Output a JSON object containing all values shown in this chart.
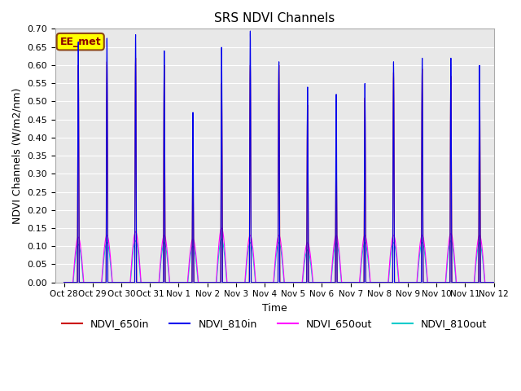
{
  "title": "SRS NDVI Channels",
  "xlabel": "Time",
  "ylabel": "NDVI Channels (W/m2/nm)",
  "ylim": [
    0.0,
    0.7
  ],
  "background_color": "#e8e8e8",
  "grid_color": "white",
  "annotation_text": "EE_met",
  "annotation_facecolor": "#ffff00",
  "annotation_edgecolor": "#8B4513",
  "annotation_textcolor": "#8B0000",
  "legend_entries": [
    {
      "label": "NDVI_650in",
      "color": "#cc0000"
    },
    {
      "label": "NDVI_810in",
      "color": "#0000ee"
    },
    {
      "label": "NDVI_650out",
      "color": "#ff00ff"
    },
    {
      "label": "NDVI_810out",
      "color": "#00cccc"
    }
  ],
  "tick_labels": [
    "Oct 28",
    "Oct 29",
    "Oct 30",
    "Oct 31",
    "Nov 1",
    "Nov 2",
    "Nov 3",
    "Nov 4",
    "Nov 5",
    "Nov 6",
    "Nov 7",
    "Nov 8",
    "Nov 9",
    "Nov 10",
    "Nov 11",
    "Nov 12"
  ],
  "num_days": 15,
  "day_peaks_810in": [
    0.665,
    0.675,
    0.685,
    0.64,
    0.47,
    0.65,
    0.695,
    0.61,
    0.54,
    0.52,
    0.55,
    0.61,
    0.62,
    0.62,
    0.6
  ],
  "day_peaks_650in": [
    0.6,
    0.61,
    0.62,
    0.6,
    0.32,
    0.55,
    0.6,
    0.6,
    0.49,
    0.35,
    0.51,
    0.58,
    0.59,
    0.57,
    0.57
  ],
  "day_peaks_650out": [
    0.125,
    0.13,
    0.14,
    0.13,
    0.12,
    0.15,
    0.13,
    0.13,
    0.11,
    0.13,
    0.13,
    0.13,
    0.13,
    0.135,
    0.13
  ],
  "day_peaks_810out": [
    0.105,
    0.11,
    0.115,
    0.11,
    0.1,
    0.12,
    0.11,
    0.11,
    0.09,
    0.11,
    0.11,
    0.11,
    0.11,
    0.115,
    0.11
  ],
  "points_per_day": 480,
  "figsize": [
    6.4,
    4.8
  ],
  "dpi": 100,
  "title_fontsize": 11,
  "axis_fontsize": 9,
  "tick_fontsize": 7.5,
  "ytick_fontsize": 8
}
